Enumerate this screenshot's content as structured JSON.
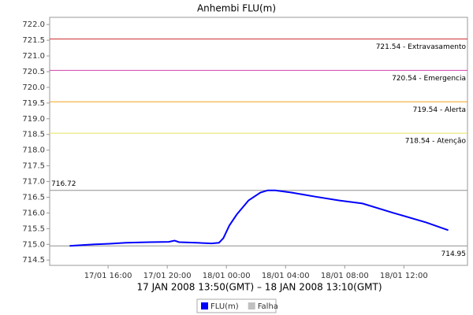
{
  "chart_data": {
    "type": "line",
    "title": "Anhembi FLU(m)",
    "x_label": "17 JAN 2008 13:50(GMT) – 18 JAN 2008 13:10(GMT)",
    "x": [
      13.4,
      14.0,
      15.1,
      16.1,
      17.2,
      18.8,
      20.1,
      20.5,
      20.8,
      22.0,
      23.0,
      23.5,
      23.8,
      24.2,
      24.7,
      25.5,
      26.3,
      26.8,
      27.3,
      28.4,
      30.0,
      31.6,
      33.2,
      35.3,
      37.5,
      39.0
    ],
    "series": [
      {
        "name": "FLU(m)",
        "color": "#0000ff",
        "values": [
          714.95,
          714.97,
          715.0,
          715.02,
          715.05,
          715.07,
          715.08,
          715.12,
          715.07,
          715.05,
          715.03,
          715.05,
          715.2,
          715.6,
          715.95,
          716.4,
          716.65,
          716.72,
          716.72,
          716.65,
          716.52,
          716.4,
          716.3,
          716.0,
          715.7,
          715.45
        ]
      }
    ],
    "legend_extra": [
      {
        "name": "Falha",
        "color": "#c0c0c0"
      }
    ],
    "xlim": [
      12.05,
      40.3
    ],
    "xticks": [
      {
        "value": 16,
        "label": "17/01 16:00"
      },
      {
        "value": 20,
        "label": "17/01 20:00"
      },
      {
        "value": 24,
        "label": "18/01 00:00"
      },
      {
        "value": 28,
        "label": "18/01 04:00"
      },
      {
        "value": 32,
        "label": "18/01 08:00"
      },
      {
        "value": 36,
        "label": "18/01 12:00"
      }
    ],
    "ylim": [
      714.33,
      722.23
    ],
    "yticks": [
      714.5,
      {
        "value": 715,
        "label": "715.0"
      },
      715.5,
      {
        "value": 716,
        "label": "716.0"
      },
      716.5,
      {
        "value": 717,
        "label": "717.0"
      },
      717.5,
      {
        "value": 718,
        "label": "718.0"
      },
      718.5,
      {
        "value": 719,
        "label": "719.0"
      },
      719.5,
      {
        "value": 720,
        "label": "720.0"
      },
      720.5,
      {
        "value": 721,
        "label": "721.0"
      },
      721.5,
      {
        "value": 722,
        "label": "722.0"
      }
    ],
    "markers": [
      {
        "value": 721.54,
        "label": "721.54 - Extravasamento",
        "color": "#d03030"
      },
      {
        "value": 720.54,
        "label": "720.54 - Emergencia",
        "color": "#d040b0"
      },
      {
        "value": 719.54,
        "label": "719.54 - Alerta",
        "color": "#f0a020"
      },
      {
        "value": 718.54,
        "label": "718.54 - Atenção",
        "color": "#e8e060"
      },
      {
        "value": 716.72,
        "color": "#909090",
        "label_side": "left"
      },
      {
        "value": 714.95,
        "color": "#909090",
        "label_side": "right"
      }
    ]
  }
}
